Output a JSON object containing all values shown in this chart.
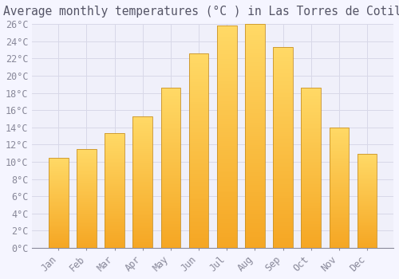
{
  "title": "Average monthly temperatures (°C ) in Las Torres de Cotillas",
  "months": [
    "Jan",
    "Feb",
    "Mar",
    "Apr",
    "May",
    "Jun",
    "Jul",
    "Aug",
    "Sep",
    "Oct",
    "Nov",
    "Dec"
  ],
  "values": [
    10.5,
    11.5,
    13.3,
    15.3,
    18.6,
    22.6,
    25.8,
    26.0,
    23.3,
    18.6,
    14.0,
    10.9
  ],
  "bar_color_bottom": "#F5A623",
  "bar_color_top": "#FFD966",
  "bar_edge_color": "#C8922A",
  "background_color": "#F5F5FF",
  "plot_bg_color": "#F0F0FA",
  "grid_color": "#D8D8E8",
  "text_color": "#888899",
  "title_color": "#555566",
  "ylim": [
    0,
    26
  ],
  "ytick_step": 2,
  "title_fontsize": 10.5,
  "tick_fontsize": 8.5,
  "bar_width": 0.7
}
